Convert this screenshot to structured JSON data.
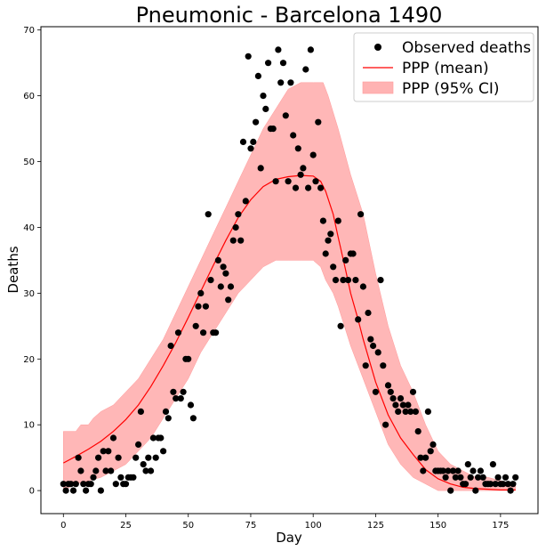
{
  "chart_data": {
    "type": "scatter",
    "title": "Pneumonic - Barcelona  1490",
    "xlabel": "Day",
    "ylabel": "Deaths",
    "xlim": [
      -9,
      190
    ],
    "ylim": [
      -3.5,
      70.5
    ],
    "xticks": [
      0,
      25,
      50,
      75,
      100,
      125,
      150,
      175
    ],
    "yticks": [
      0,
      10,
      20,
      30,
      40,
      50,
      60,
      70
    ],
    "grid": false,
    "legend_position": "top-right",
    "legend": {
      "observed": "Observed deaths",
      "mean": "PPP (mean)",
      "ci": "PPP (95% CI)"
    },
    "colors": {
      "observed": "#000000",
      "mean": "#ff0000",
      "ci_fill": "#ffb3b3"
    },
    "series": [
      {
        "name": "Observed deaths",
        "kind": "scatter",
        "points": [
          [
            0,
            1
          ],
          [
            1,
            0
          ],
          [
            2,
            1
          ],
          [
            3,
            1
          ],
          [
            4,
            0
          ],
          [
            5,
            1
          ],
          [
            6,
            5
          ],
          [
            7,
            3
          ],
          [
            8,
            1
          ],
          [
            9,
            0
          ],
          [
            10,
            1
          ],
          [
            11,
            1
          ],
          [
            12,
            2
          ],
          [
            13,
            3
          ],
          [
            14,
            5
          ],
          [
            15,
            0
          ],
          [
            16,
            6
          ],
          [
            17,
            3
          ],
          [
            18,
            6
          ],
          [
            19,
            3
          ],
          [
            20,
            8
          ],
          [
            21,
            1
          ],
          [
            22,
            5
          ],
          [
            23,
            2
          ],
          [
            24,
            1
          ],
          [
            25,
            1
          ],
          [
            26,
            2
          ],
          [
            27,
            2
          ],
          [
            28,
            2
          ],
          [
            29,
            5
          ],
          [
            30,
            7
          ],
          [
            31,
            12
          ],
          [
            32,
            4
          ],
          [
            33,
            3
          ],
          [
            34,
            5
          ],
          [
            35,
            3
          ],
          [
            36,
            8
          ],
          [
            37,
            5
          ],
          [
            38,
            8
          ],
          [
            39,
            8
          ],
          [
            40,
            6
          ],
          [
            41,
            12
          ],
          [
            42,
            11
          ],
          [
            43,
            22
          ],
          [
            44,
            15
          ],
          [
            45,
            14
          ],
          [
            46,
            24
          ],
          [
            47,
            14
          ],
          [
            48,
            15
          ],
          [
            49,
            20
          ],
          [
            50,
            20
          ],
          [
            51,
            13
          ],
          [
            52,
            11
          ],
          [
            53,
            25
          ],
          [
            54,
            28
          ],
          [
            55,
            30
          ],
          [
            56,
            24
          ],
          [
            57,
            28
          ],
          [
            58,
            42
          ],
          [
            59,
            32
          ],
          [
            60,
            24
          ],
          [
            61,
            24
          ],
          [
            62,
            35
          ],
          [
            63,
            31
          ],
          [
            64,
            34
          ],
          [
            65,
            33
          ],
          [
            66,
            29
          ],
          [
            67,
            31
          ],
          [
            68,
            38
          ],
          [
            69,
            40
          ],
          [
            70,
            42
          ],
          [
            71,
            38
          ],
          [
            72,
            53
          ],
          [
            73,
            44
          ],
          [
            74,
            66
          ],
          [
            75,
            52
          ],
          [
            76,
            53
          ],
          [
            77,
            56
          ],
          [
            78,
            63
          ],
          [
            79,
            49
          ],
          [
            80,
            60
          ],
          [
            81,
            58
          ],
          [
            82,
            65
          ],
          [
            83,
            55
          ],
          [
            84,
            55
          ],
          [
            85,
            47
          ],
          [
            86,
            67
          ],
          [
            87,
            62
          ],
          [
            88,
            65
          ],
          [
            89,
            57
          ],
          [
            90,
            47
          ],
          [
            91,
            62
          ],
          [
            92,
            54
          ],
          [
            93,
            46
          ],
          [
            94,
            52
          ],
          [
            95,
            48
          ],
          [
            96,
            49
          ],
          [
            97,
            64
          ],
          [
            98,
            46
          ],
          [
            99,
            67
          ],
          [
            100,
            51
          ],
          [
            101,
            47
          ],
          [
            102,
            56
          ],
          [
            103,
            46
          ],
          [
            104,
            41
          ],
          [
            105,
            36
          ],
          [
            106,
            38
          ],
          [
            107,
            39
          ],
          [
            108,
            34
          ],
          [
            109,
            32
          ],
          [
            110,
            41
          ],
          [
            111,
            25
          ],
          [
            112,
            32
          ],
          [
            113,
            35
          ],
          [
            114,
            32
          ],
          [
            115,
            36
          ],
          [
            116,
            36
          ],
          [
            117,
            32
          ],
          [
            118,
            26
          ],
          [
            119,
            42
          ],
          [
            120,
            31
          ],
          [
            121,
            19
          ],
          [
            122,
            27
          ],
          [
            123,
            23
          ],
          [
            124,
            22
          ],
          [
            125,
            15
          ],
          [
            126,
            21
          ],
          [
            127,
            32
          ],
          [
            128,
            19
          ],
          [
            129,
            10
          ],
          [
            130,
            16
          ],
          [
            131,
            15
          ],
          [
            132,
            14
          ],
          [
            133,
            13
          ],
          [
            134,
            12
          ],
          [
            135,
            14
          ],
          [
            136,
            13
          ],
          [
            137,
            12
          ],
          [
            138,
            13
          ],
          [
            139,
            12
          ],
          [
            140,
            15
          ],
          [
            141,
            12
          ],
          [
            142,
            9
          ],
          [
            143,
            5
          ],
          [
            144,
            3
          ],
          [
            145,
            5
          ],
          [
            146,
            12
          ],
          [
            147,
            6
          ],
          [
            148,
            7
          ],
          [
            149,
            3
          ],
          [
            150,
            3
          ],
          [
            151,
            3
          ],
          [
            152,
            3
          ],
          [
            153,
            2
          ],
          [
            154,
            3
          ],
          [
            155,
            0
          ],
          [
            156,
            3
          ],
          [
            157,
            2
          ],
          [
            158,
            3
          ],
          [
            159,
            2
          ],
          [
            160,
            1
          ],
          [
            161,
            1
          ],
          [
            162,
            4
          ],
          [
            163,
            2
          ],
          [
            164,
            3
          ],
          [
            165,
            0
          ],
          [
            166,
            2
          ],
          [
            167,
            3
          ],
          [
            168,
            2
          ],
          [
            169,
            1
          ],
          [
            170,
            1
          ],
          [
            171,
            1
          ],
          [
            172,
            4
          ],
          [
            173,
            1
          ],
          [
            174,
            2
          ],
          [
            175,
            1
          ],
          [
            176,
            1
          ],
          [
            177,
            2
          ],
          [
            178,
            1
          ],
          [
            179,
            0
          ],
          [
            180,
            1
          ],
          [
            181,
            2
          ]
        ]
      },
      {
        "name": "PPP (mean)",
        "kind": "line",
        "points": [
          [
            0,
            4.2
          ],
          [
            5,
            5.2
          ],
          [
            10,
            6.3
          ],
          [
            15,
            7.5
          ],
          [
            20,
            9
          ],
          [
            25,
            10.8
          ],
          [
            30,
            13
          ],
          [
            35,
            15.8
          ],
          [
            40,
            19
          ],
          [
            45,
            22.5
          ],
          [
            50,
            26.3
          ],
          [
            55,
            30.3
          ],
          [
            60,
            34.2
          ],
          [
            65,
            38
          ],
          [
            70,
            41.5
          ],
          [
            75,
            44.2
          ],
          [
            80,
            46.2
          ],
          [
            85,
            47.3
          ],
          [
            90,
            47.7
          ],
          [
            95,
            47.9
          ],
          [
            100,
            47.8
          ],
          [
            103,
            47
          ],
          [
            105,
            45.5
          ],
          [
            108,
            42
          ],
          [
            110,
            38.5
          ],
          [
            113,
            33.5
          ],
          [
            115,
            30
          ],
          [
            118,
            26
          ],
          [
            120,
            23
          ],
          [
            125,
            16.5
          ],
          [
            130,
            11.5
          ],
          [
            135,
            8
          ],
          [
            140,
            5.5
          ],
          [
            145,
            3.2
          ],
          [
            150,
            1.8
          ],
          [
            155,
            1
          ],
          [
            160,
            0.5
          ],
          [
            165,
            0.3
          ],
          [
            170,
            0.2
          ],
          [
            175,
            0.1
          ],
          [
            181,
            0.1
          ]
        ]
      },
      {
        "name": "PPP (95% CI)",
        "kind": "band",
        "upper": [
          [
            0,
            9
          ],
          [
            5,
            9
          ],
          [
            7,
            10
          ],
          [
            10,
            10
          ],
          [
            12,
            11
          ],
          [
            15,
            12
          ],
          [
            20,
            13
          ],
          [
            25,
            15
          ],
          [
            30,
            17
          ],
          [
            35,
            20
          ],
          [
            40,
            23
          ],
          [
            45,
            27
          ],
          [
            50,
            31
          ],
          [
            55,
            35
          ],
          [
            60,
            39
          ],
          [
            65,
            43
          ],
          [
            70,
            47
          ],
          [
            75,
            51
          ],
          [
            80,
            55
          ],
          [
            85,
            58
          ],
          [
            90,
            61
          ],
          [
            95,
            62
          ],
          [
            100,
            62
          ],
          [
            104,
            62
          ],
          [
            106,
            60
          ],
          [
            110,
            55
          ],
          [
            115,
            48
          ],
          [
            120,
            42
          ],
          [
            125,
            33
          ],
          [
            130,
            25
          ],
          [
            135,
            19
          ],
          [
            140,
            15
          ],
          [
            145,
            10
          ],
          [
            150,
            6
          ],
          [
            155,
            4
          ],
          [
            160,
            3
          ],
          [
            165,
            2
          ],
          [
            170,
            2
          ],
          [
            175,
            1.5
          ],
          [
            181,
            1
          ]
        ],
        "lower": [
          [
            0,
            0
          ],
          [
            5,
            1
          ],
          [
            10,
            1.5
          ],
          [
            15,
            2
          ],
          [
            20,
            3
          ],
          [
            25,
            4
          ],
          [
            30,
            6
          ],
          [
            35,
            8
          ],
          [
            40,
            11
          ],
          [
            45,
            14
          ],
          [
            50,
            17
          ],
          [
            55,
            21
          ],
          [
            60,
            24
          ],
          [
            65,
            27
          ],
          [
            70,
            30
          ],
          [
            75,
            32
          ],
          [
            80,
            34
          ],
          [
            85,
            35
          ],
          [
            90,
            35
          ],
          [
            95,
            35
          ],
          [
            100,
            35
          ],
          [
            103,
            34
          ],
          [
            105,
            32
          ],
          [
            108,
            30
          ],
          [
            110,
            28
          ],
          [
            115,
            22
          ],
          [
            120,
            17
          ],
          [
            125,
            12
          ],
          [
            130,
            7
          ],
          [
            135,
            4
          ],
          [
            140,
            2
          ],
          [
            145,
            1
          ],
          [
            150,
            0
          ],
          [
            155,
            0
          ],
          [
            160,
            0
          ],
          [
            165,
            0
          ],
          [
            170,
            0
          ],
          [
            175,
            0
          ],
          [
            181,
            0
          ]
        ]
      }
    ]
  }
}
